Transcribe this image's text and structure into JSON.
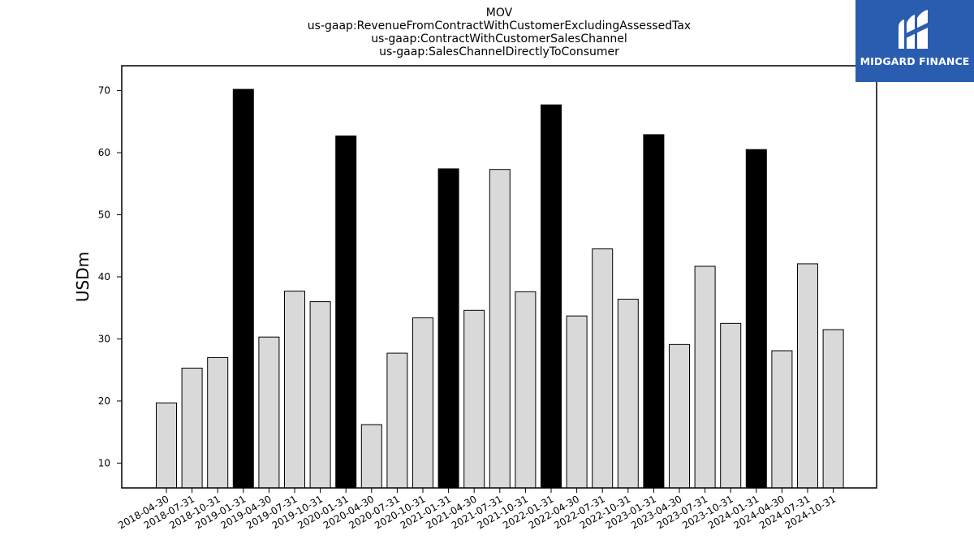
{
  "brand": {
    "name": "MIDGARD FINANCE",
    "color": "#2a5db0"
  },
  "chart_data": {
    "type": "bar",
    "title_lines": [
      "MOV",
      "us-gaap:RevenueFromContractWithCustomerExcludingAssessedTax",
      "us-gaap:ContractWithCustomerSalesChannel",
      "us-gaap:SalesChannelDirectlyToConsumer"
    ],
    "xlabel": "",
    "ylabel": "USDm",
    "ylim": [
      6,
      74
    ],
    "yticks": [
      10,
      20,
      30,
      40,
      50,
      60,
      70
    ],
    "grid": false,
    "legend": false,
    "colors": {
      "quarter": "#d9d9d9",
      "annual": "#000000",
      "edge": "#000000"
    },
    "categories": [
      "2018-04-30",
      "2018-07-31",
      "2018-10-31",
      "2019-01-31",
      "2019-04-30",
      "2019-07-31",
      "2019-10-31",
      "2020-01-31",
      "2020-04-30",
      "2020-07-31",
      "2020-10-31",
      "2021-01-31",
      "2021-04-30",
      "2021-07-31",
      "2021-10-31",
      "2022-01-31",
      "2022-04-30",
      "2022-07-31",
      "2022-10-31",
      "2023-01-31",
      "2023-04-30",
      "2023-07-31",
      "2023-10-31",
      "2024-01-31",
      "2024-04-30",
      "2024-07-31",
      "2024-10-31"
    ],
    "values": [
      19.7,
      25.3,
      27.0,
      70.2,
      30.3,
      37.7,
      36.0,
      62.7,
      16.2,
      27.7,
      33.4,
      57.4,
      34.6,
      57.3,
      37.6,
      67.7,
      33.7,
      44.5,
      36.4,
      62.9,
      29.1,
      41.7,
      32.5,
      60.5,
      28.1,
      42.1,
      31.5
    ],
    "highlight": [
      false,
      false,
      false,
      true,
      false,
      false,
      false,
      true,
      false,
      false,
      false,
      true,
      false,
      false,
      false,
      true,
      false,
      false,
      false,
      true,
      false,
      false,
      false,
      true,
      false,
      false,
      false
    ]
  }
}
